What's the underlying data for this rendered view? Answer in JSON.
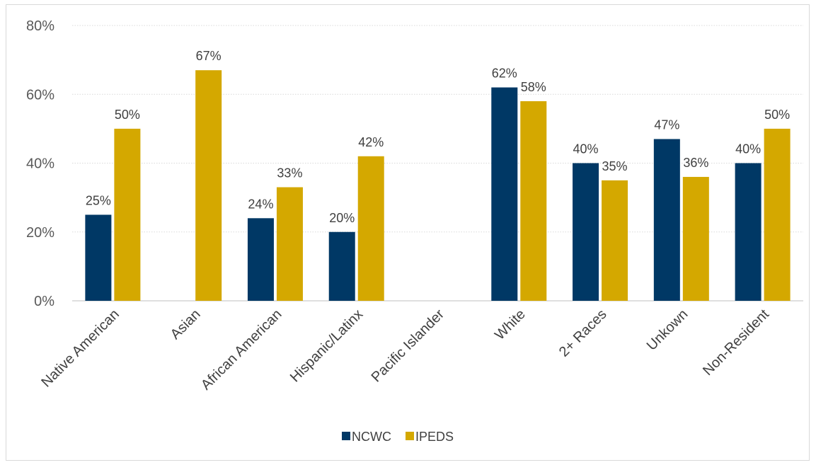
{
  "chart_data": {
    "type": "bar",
    "title": "",
    "xlabel": "",
    "ylabel": "",
    "categories": [
      "Native American",
      "Asian",
      "African American",
      "Hispanic/Latinx",
      "Pacific Islander",
      "White",
      "2+ Races",
      "Unkown",
      "Non-Resident"
    ],
    "series": [
      {
        "name": "NCWC",
        "color": "#003865",
        "values": [
          25,
          null,
          24,
          20,
          null,
          62,
          40,
          47,
          40
        ]
      },
      {
        "name": "IPEDS",
        "color": "#D4A800",
        "values": [
          50,
          67,
          33,
          42,
          null,
          58,
          35,
          36,
          50
        ]
      }
    ],
    "ylim": [
      0,
      80
    ],
    "yticks": [
      0,
      20,
      40,
      60,
      80
    ],
    "ytick_labels": [
      "0%",
      "20%",
      "40%",
      "60%",
      "80%"
    ],
    "value_suffix": "%",
    "grid": true,
    "legend_position": "bottom"
  }
}
